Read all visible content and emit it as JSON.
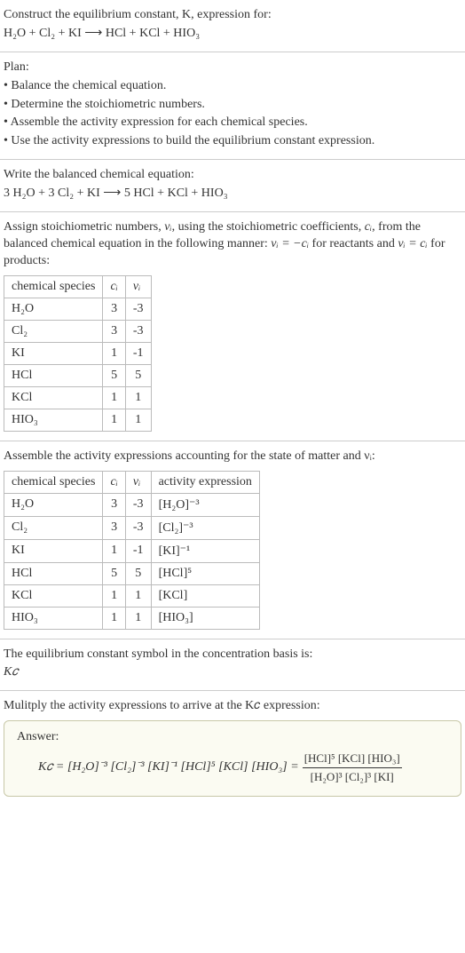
{
  "header": {
    "line1": "Construct the equilibrium constant, K, expression for:",
    "equation_unbalanced": "H₂O + Cl₂ + KI ⟶ HCl + KCl + HIO₃"
  },
  "plan": {
    "title": "Plan:",
    "bullets": [
      "• Balance the chemical equation.",
      "• Determine the stoichiometric numbers.",
      "• Assemble the activity expression for each chemical species.",
      "• Use the activity expressions to build the equilibrium constant expression."
    ]
  },
  "balanced": {
    "title": "Write the balanced chemical equation:",
    "equation": "3 H₂O + 3 Cl₂ + KI ⟶ 5 HCl + KCl + HIO₃"
  },
  "assign": {
    "intro_a": "Assign stoichiometric numbers, ",
    "intro_b": ", using the stoichiometric coefficients, ",
    "intro_c": ", from the balanced chemical equation in the following manner: ",
    "intro_d": " for reactants and ",
    "intro_e": " for products:",
    "nu_i": "νᵢ",
    "c_i": "cᵢ",
    "rel1": "νᵢ = −cᵢ",
    "rel2": "νᵢ = cᵢ"
  },
  "table1": {
    "headers": [
      "chemical species",
      "cᵢ",
      "νᵢ"
    ],
    "rows": [
      [
        "H₂O",
        "3",
        "-3"
      ],
      [
        "Cl₂",
        "3",
        "-3"
      ],
      [
        "KI",
        "1",
        "-1"
      ],
      [
        "HCl",
        "5",
        "5"
      ],
      [
        "KCl",
        "1",
        "1"
      ],
      [
        "HIO₃",
        "1",
        "1"
      ]
    ]
  },
  "assemble_line": "Assemble the activity expressions accounting for the state of matter and νᵢ:",
  "table2": {
    "headers": [
      "chemical species",
      "cᵢ",
      "νᵢ",
      "activity expression"
    ],
    "rows": [
      {
        "sp": "H₂O",
        "c": "3",
        "nu": "-3",
        "act": "[H₂O]⁻³"
      },
      {
        "sp": "Cl₂",
        "c": "3",
        "nu": "-3",
        "act": "[Cl₂]⁻³"
      },
      {
        "sp": "KI",
        "c": "1",
        "nu": "-1",
        "act": "[KI]⁻¹"
      },
      {
        "sp": "HCl",
        "c": "5",
        "nu": "5",
        "act": "[HCl]⁵"
      },
      {
        "sp": "KCl",
        "c": "1",
        "nu": "1",
        "act": "[KCl]"
      },
      {
        "sp": "HIO₃",
        "c": "1",
        "nu": "1",
        "act": "[HIO₃]"
      }
    ]
  },
  "symbol": {
    "line": "The equilibrium constant symbol in the concentration basis is:",
    "kc": "K𝑐"
  },
  "multiply_line": "Mulitply the activity expressions to arrive at the K𝑐 expression:",
  "answer": {
    "label": "Answer:",
    "lhs": "K𝑐 = [H₂O]⁻³ [Cl₂]⁻³ [KI]⁻¹ [HCl]⁵ [KCl] [HIO₃] =",
    "num": "[HCl]⁵ [KCl] [HIO₃]",
    "den": "[H₂O]³ [Cl₂]³ [KI]"
  },
  "colors": {
    "text": "#333333",
    "border": "#cccccc",
    "table_border": "#bbbbbb",
    "answer_bg": "#fbfbf2",
    "answer_border": "#c8c8a8"
  }
}
